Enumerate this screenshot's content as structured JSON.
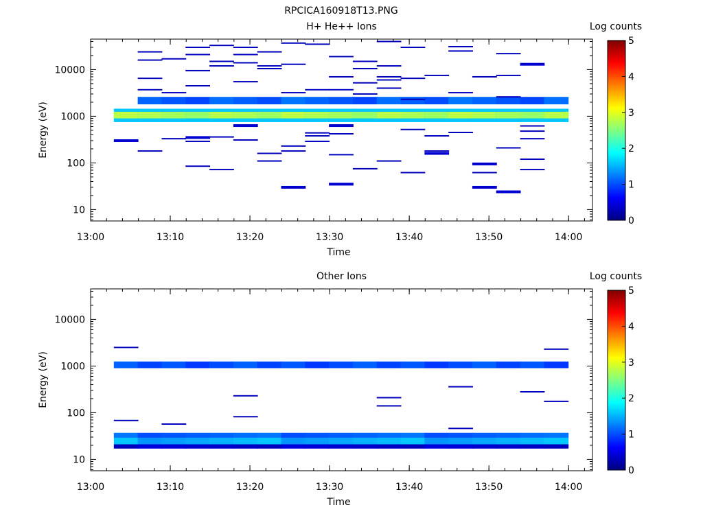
{
  "title": "RPCICA160918T13.PNG",
  "colors": {
    "colormap": [
      "#00007f",
      "#0000ff",
      "#0080ff",
      "#00ffff",
      "#80ff80",
      "#ffff00",
      "#ff8000",
      "#ff0000",
      "#7f0000"
    ]
  },
  "chart_data": [
    {
      "type": "heatmap",
      "title": "H+ He++ Ions",
      "xlabel": "Time",
      "ylabel": "Energy (eV)",
      "y_scale": "log",
      "xlim": [
        "13:00",
        "14:03"
      ],
      "ylim": [
        5.7,
        45000
      ],
      "x_ticks": [
        "13:00",
        "13:10",
        "13:20",
        "13:30",
        "13:40",
        "13:50",
        "14:00"
      ],
      "y_ticks": [
        "10",
        "100",
        "1000",
        "10000"
      ],
      "colorbar": {
        "label": "Log counts",
        "range": [
          0,
          5
        ],
        "ticks": [
          "0",
          "1",
          "2",
          "3",
          "4",
          "5"
        ]
      },
      "columns": [
        "13:03",
        "13:06",
        "13:09",
        "13:12",
        "13:15",
        "13:18",
        "13:21",
        "13:24",
        "13:27",
        "13:30",
        "13:33",
        "13:36",
        "13:39",
        "13:42",
        "13:45",
        "13:48",
        "13:51",
        "13:54",
        "13:57"
      ],
      "band": {
        "energy_range": [
          750,
          1450
        ],
        "core_range": [
          900,
          1250
        ],
        "value_edge": 1.6,
        "value_core": 2.8,
        "flank_energy": [
          1800,
          2600
        ],
        "flank_value": 1.2
      },
      "events": [
        {
          "t": "13:03",
          "e": 300,
          "v": 0.4
        },
        {
          "t": "13:06",
          "e": 24000,
          "v": 0.3
        },
        {
          "t": "13:06",
          "e": 16000,
          "v": 0.3
        },
        {
          "t": "13:06",
          "e": 6500,
          "v": 0.3
        },
        {
          "t": "13:06",
          "e": 3700,
          "v": 0.3
        },
        {
          "t": "13:06",
          "e": 180,
          "v": 0.3
        },
        {
          "t": "13:09",
          "e": 17000,
          "v": 0.3
        },
        {
          "t": "13:09",
          "e": 3200,
          "v": 0.3
        },
        {
          "t": "13:09",
          "e": 330,
          "v": 0.3
        },
        {
          "t": "13:12",
          "e": 30000,
          "v": 0.3
        },
        {
          "t": "13:12",
          "e": 21000,
          "v": 0.3
        },
        {
          "t": "13:12",
          "e": 9500,
          "v": 0.3
        },
        {
          "t": "13:12",
          "e": 4500,
          "v": 0.3
        },
        {
          "t": "13:12",
          "e": 350,
          "v": 0.4
        },
        {
          "t": "13:12",
          "e": 290,
          "v": 0.3
        },
        {
          "t": "13:12",
          "e": 85,
          "v": 0.3
        },
        {
          "t": "13:15",
          "e": 33000,
          "v": 0.3
        },
        {
          "t": "13:15",
          "e": 15000,
          "v": 0.3
        },
        {
          "t": "13:15",
          "e": 12000,
          "v": 0.3
        },
        {
          "t": "13:15",
          "e": 360,
          "v": 0.3
        },
        {
          "t": "13:15",
          "e": 72,
          "v": 0.3
        },
        {
          "t": "13:18",
          "e": 30000,
          "v": 0.3
        },
        {
          "t": "13:18",
          "e": 21000,
          "v": 0.3
        },
        {
          "t": "13:18",
          "e": 14000,
          "v": 0.3
        },
        {
          "t": "13:18",
          "e": 5500,
          "v": 0.3
        },
        {
          "t": "13:18",
          "e": 630,
          "v": 0.4
        },
        {
          "t": "13:18",
          "e": 310,
          "v": 0.3
        },
        {
          "t": "13:21",
          "e": 24000,
          "v": 0.3
        },
        {
          "t": "13:21",
          "e": 12000,
          "v": 0.3
        },
        {
          "t": "13:21",
          "e": 10500,
          "v": 0.3
        },
        {
          "t": "13:21",
          "e": 160,
          "v": 0.3
        },
        {
          "t": "13:21",
          "e": 110,
          "v": 0.3
        },
        {
          "t": "13:24",
          "e": 37000,
          "v": 0.3
        },
        {
          "t": "13:24",
          "e": 13000,
          "v": 0.3
        },
        {
          "t": "13:24",
          "e": 3200,
          "v": 0.3
        },
        {
          "t": "13:24",
          "e": 230,
          "v": 0.3
        },
        {
          "t": "13:24",
          "e": 180,
          "v": 0.3
        },
        {
          "t": "13:24",
          "e": 30,
          "v": 0.4
        },
        {
          "t": "13:27",
          "e": 35000,
          "v": 0.3
        },
        {
          "t": "13:27",
          "e": 3700,
          "v": 0.3
        },
        {
          "t": "13:27",
          "e": 440,
          "v": 0.3
        },
        {
          "t": "13:27",
          "e": 380,
          "v": 0.3
        },
        {
          "t": "13:27",
          "e": 290,
          "v": 0.3
        },
        {
          "t": "13:30",
          "e": 19000,
          "v": 0.3
        },
        {
          "t": "13:30",
          "e": 7000,
          "v": 0.3
        },
        {
          "t": "13:30",
          "e": 3700,
          "v": 0.3
        },
        {
          "t": "13:30",
          "e": 630,
          "v": 0.4
        },
        {
          "t": "13:30",
          "e": 420,
          "v": 0.3
        },
        {
          "t": "13:30",
          "e": 150,
          "v": 0.3
        },
        {
          "t": "13:30",
          "e": 35,
          "v": 0.4
        },
        {
          "t": "13:33",
          "e": 15000,
          "v": 0.3
        },
        {
          "t": "13:33",
          "e": 10500,
          "v": 0.3
        },
        {
          "t": "13:33",
          "e": 5200,
          "v": 0.3
        },
        {
          "t": "13:33",
          "e": 3000,
          "v": 0.3
        },
        {
          "t": "13:33",
          "e": 75,
          "v": 0.3
        },
        {
          "t": "13:36",
          "e": 40000,
          "v": 0.3
        },
        {
          "t": "13:36",
          "e": 12000,
          "v": 0.3
        },
        {
          "t": "13:36",
          "e": 7000,
          "v": 0.3
        },
        {
          "t": "13:36",
          "e": 6000,
          "v": 0.3
        },
        {
          "t": "13:36",
          "e": 4000,
          "v": 0.3
        },
        {
          "t": "13:36",
          "e": 110,
          "v": 0.3
        },
        {
          "t": "13:39",
          "e": 30000,
          "v": 0.3
        },
        {
          "t": "13:39",
          "e": 6500,
          "v": 0.3
        },
        {
          "t": "13:39",
          "e": 2300,
          "v": 0.3
        },
        {
          "t": "13:39",
          "e": 520,
          "v": 0.3
        },
        {
          "t": "13:39",
          "e": 62,
          "v": 0.3
        },
        {
          "t": "13:42",
          "e": 7500,
          "v": 0.3
        },
        {
          "t": "13:42",
          "e": 380,
          "v": 0.3
        },
        {
          "t": "13:42",
          "e": 180,
          "v": 0.3
        },
        {
          "t": "13:42",
          "e": 160,
          "v": 0.4
        },
        {
          "t": "13:45",
          "e": 31000,
          "v": 0.3
        },
        {
          "t": "13:45",
          "e": 25000,
          "v": 0.3
        },
        {
          "t": "13:45",
          "e": 3200,
          "v": 0.3
        },
        {
          "t": "13:45",
          "e": 450,
          "v": 0.3
        },
        {
          "t": "13:48",
          "e": 7000,
          "v": 0.3
        },
        {
          "t": "13:48",
          "e": 95,
          "v": 0.4
        },
        {
          "t": "13:48",
          "e": 62,
          "v": 0.3
        },
        {
          "t": "13:48",
          "e": 30,
          "v": 0.4
        },
        {
          "t": "13:51",
          "e": 22000,
          "v": 0.3
        },
        {
          "t": "13:51",
          "e": 7500,
          "v": 0.3
        },
        {
          "t": "13:51",
          "e": 2600,
          "v": 0.3
        },
        {
          "t": "13:51",
          "e": 210,
          "v": 0.3
        },
        {
          "t": "13:51",
          "e": 24,
          "v": 0.4
        },
        {
          "t": "13:54",
          "e": 13000,
          "v": 0.4
        },
        {
          "t": "13:54",
          "e": 620,
          "v": 0.3
        },
        {
          "t": "13:54",
          "e": 480,
          "v": 0.3
        },
        {
          "t": "13:54",
          "e": 330,
          "v": 0.3
        },
        {
          "t": "13:54",
          "e": 120,
          "v": 0.3
        },
        {
          "t": "13:54",
          "e": 72,
          "v": 0.3
        }
      ]
    },
    {
      "type": "heatmap",
      "title": "Other Ions",
      "xlabel": "Time",
      "ylabel": "Energy (eV)",
      "y_scale": "log",
      "xlim": [
        "13:00",
        "14:03"
      ],
      "ylim": [
        5.7,
        45000
      ],
      "x_ticks": [
        "13:00",
        "13:10",
        "13:20",
        "13:30",
        "13:40",
        "13:50",
        "14:00"
      ],
      "y_ticks": [
        "10",
        "100",
        "1000",
        "10000"
      ],
      "colorbar": {
        "label": "Log counts",
        "range": [
          0,
          5
        ],
        "ticks": [
          "0",
          "1",
          "2",
          "3",
          "4",
          "5"
        ]
      },
      "columns": [
        "13:03",
        "13:06",
        "13:09",
        "13:12",
        "13:15",
        "13:18",
        "13:21",
        "13:24",
        "13:27",
        "13:30",
        "13:33",
        "13:36",
        "13:39",
        "13:42",
        "13:45",
        "13:48",
        "13:51",
        "13:54",
        "13:57"
      ],
      "high_band": {
        "energy_range": [
          900,
          1250
        ],
        "value": 1.1
      },
      "low_band": {
        "energy_range": [
          17,
          37
        ],
        "value_top": 1.2,
        "value_mid": 1.6,
        "value_bottom": 0.3
      },
      "events": [
        {
          "t": "13:03",
          "e": 2500,
          "v": 0.3
        },
        {
          "t": "13:03",
          "e": 68,
          "v": 0.3
        },
        {
          "t": "13:09",
          "e": 57,
          "v": 0.3
        },
        {
          "t": "13:18",
          "e": 230,
          "v": 0.3
        },
        {
          "t": "13:18",
          "e": 82,
          "v": 0.3
        },
        {
          "t": "13:36",
          "e": 210,
          "v": 0.3
        },
        {
          "t": "13:36",
          "e": 140,
          "v": 0.3
        },
        {
          "t": "13:45",
          "e": 360,
          "v": 0.3
        },
        {
          "t": "13:45",
          "e": 46,
          "v": 0.3
        },
        {
          "t": "13:54",
          "e": 280,
          "v": 0.3
        },
        {
          "t": "13:57",
          "e": 2300,
          "v": 0.3
        },
        {
          "t": "13:57",
          "e": 175,
          "v": 0.3
        }
      ]
    }
  ]
}
